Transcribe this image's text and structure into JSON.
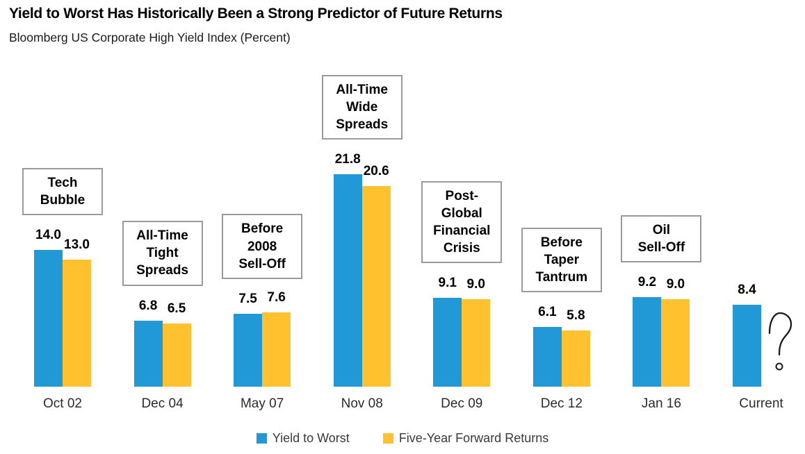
{
  "header": {
    "title": "Yield to Worst Has Historically Been a Strong Predictor of Future Returns",
    "subtitle": "Bloomberg US Corporate High Yield Index (Percent)"
  },
  "colors": {
    "yield_to_worst": "#2199D6",
    "forward_returns": "#FFC12E",
    "annotation_border": "#9A9A9A",
    "value_label_text": "#000000",
    "axis_label_text": "#2B2B2B",
    "question_mark": "#1A1A1A"
  },
  "chart_data": {
    "type": "bar",
    "title": "Yield to Worst Has Historically Been a Strong Predictor of Future Returns",
    "subtitle": "Bloomberg US Corporate High Yield Index (Percent)",
    "unit": "Percent",
    "categories": [
      "Oct 02",
      "Dec 04",
      "May 07",
      "Nov 08",
      "Dec 09",
      "Dec 12",
      "Jan 16",
      "Current"
    ],
    "series": [
      {
        "name": "Yield to Worst",
        "values": [
          14.0,
          6.8,
          7.5,
          21.8,
          9.1,
          6.1,
          9.2,
          8.4
        ]
      },
      {
        "name": "Five-Year Forward Returns",
        "values": [
          13.0,
          6.5,
          7.6,
          20.6,
          9.0,
          5.8,
          9.0,
          null
        ]
      }
    ],
    "value_label_decimals": 1,
    "ylim": [
      0,
      22
    ],
    "grid": false,
    "axis_lines": false,
    "legend_position": "bottom",
    "missing_value_marker": "question-mark",
    "annotations": [
      {
        "category": "Oct 02",
        "lines": [
          "Tech",
          "Bubble"
        ]
      },
      {
        "category": "Dec 04",
        "lines": [
          "All-Time",
          "Tight",
          "Spreads"
        ]
      },
      {
        "category": "May 07",
        "lines": [
          "Before",
          "2008",
          "Sell-Off"
        ]
      },
      {
        "category": "Nov 08",
        "lines": [
          "All-Time",
          "Wide",
          "Spreads"
        ]
      },
      {
        "category": "Dec 09",
        "lines": [
          "Post-",
          "Global",
          "Financial",
          "Crisis"
        ]
      },
      {
        "category": "Dec 12",
        "lines": [
          "Before",
          "Taper",
          "Tantrum"
        ]
      },
      {
        "category": "Jan 16",
        "lines": [
          "Oil",
          "Sell-Off"
        ]
      },
      {
        "category": "Current",
        "lines": null
      }
    ]
  },
  "legend": {
    "items": [
      {
        "label": "Yield to Worst",
        "color_key": "yield_to_worst"
      },
      {
        "label": "Five-Year Forward Returns",
        "color_key": "forward_returns"
      }
    ]
  }
}
